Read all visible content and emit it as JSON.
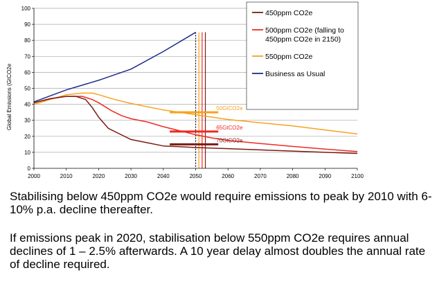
{
  "chart_data": {
    "type": "line",
    "title": "",
    "xlabel": "",
    "ylabel": "Global Emissions (GtCO2e",
    "xlim": [
      2000,
      2100
    ],
    "ylim": [
      0,
      100
    ],
    "x_ticks": [
      2000,
      2010,
      2020,
      2030,
      2040,
      2050,
      2060,
      2070,
      2080,
      2090,
      2100
    ],
    "y_ticks": [
      0,
      10,
      20,
      30,
      40,
      50,
      60,
      70,
      80,
      90,
      100
    ],
    "grid": "horizontal",
    "legend_position": "top-right",
    "series": [
      {
        "name": "450ppm CO2e",
        "color": "#7b1a12",
        "points": [
          [
            2000,
            41
          ],
          [
            2005,
            43.5
          ],
          [
            2010,
            45
          ],
          [
            2013,
            45
          ],
          [
            2016,
            43
          ],
          [
            2018,
            38
          ],
          [
            2020,
            32
          ],
          [
            2023,
            25
          ],
          [
            2027,
            21
          ],
          [
            2030,
            18
          ],
          [
            2035,
            16
          ],
          [
            2040,
            14
          ],
          [
            2045,
            13.5
          ],
          [
            2050,
            13
          ],
          [
            2060,
            12.3
          ],
          [
            2070,
            11.5
          ],
          [
            2080,
            10.8
          ],
          [
            2090,
            10
          ],
          [
            2100,
            9.3
          ]
        ]
      },
      {
        "name": "500ppm CO2e (falling to 450ppm CO2e in 2150)",
        "color": "#ee2a24",
        "points": [
          [
            2000,
            41
          ],
          [
            2005,
            43.5
          ],
          [
            2010,
            45
          ],
          [
            2015,
            45
          ],
          [
            2018,
            43
          ],
          [
            2020,
            41
          ],
          [
            2024,
            36
          ],
          [
            2027,
            33
          ],
          [
            2030,
            31
          ],
          [
            2035,
            29
          ],
          [
            2040,
            26
          ],
          [
            2045,
            23.5
          ],
          [
            2050,
            21
          ],
          [
            2055,
            19
          ],
          [
            2060,
            17.5
          ],
          [
            2070,
            15.5
          ],
          [
            2080,
            13.7
          ],
          [
            2090,
            12
          ],
          [
            2100,
            10.5
          ]
        ]
      },
      {
        "name": "550ppm CO2e",
        "color": "#f6a21f",
        "points": [
          [
            2000,
            40
          ],
          [
            2005,
            43
          ],
          [
            2010,
            46
          ],
          [
            2015,
            47
          ],
          [
            2018,
            47
          ],
          [
            2020,
            46
          ],
          [
            2025,
            43
          ],
          [
            2030,
            40.5
          ],
          [
            2040,
            36.5
          ],
          [
            2050,
            33.5
          ],
          [
            2060,
            30.5
          ],
          [
            2070,
            28.5
          ],
          [
            2080,
            26.5
          ],
          [
            2090,
            24
          ],
          [
            2100,
            21.5
          ]
        ]
      },
      {
        "name": "Business as Usual",
        "color": "#1c2a8c",
        "points": [
          [
            2000,
            41.5
          ],
          [
            2010,
            49
          ],
          [
            2020,
            55
          ],
          [
            2030,
            62
          ],
          [
            2040,
            73
          ],
          [
            2050,
            85
          ]
        ]
      }
    ],
    "annotations": [
      {
        "label": "50GtCO2e",
        "y": 35,
        "x_start": 2042,
        "x_end": 2057,
        "color": "#f6a21f"
      },
      {
        "label": "65GtCO2e",
        "y": 23,
        "x_start": 2042,
        "x_end": 2057,
        "color": "#ee2a24"
      },
      {
        "label": "70GtCO2e",
        "y": 15,
        "x_start": 2042,
        "x_end": 2057,
        "color": "#7b1a12"
      }
    ],
    "marker_lines": [
      {
        "x": 2050,
        "style": "dotted",
        "color": "#000000",
        "y_top": 85
      },
      {
        "x": 2051,
        "color": "#f6a21f",
        "y_top": 85
      },
      {
        "x": 2052,
        "color": "#ee2a24",
        "y_top": 85
      },
      {
        "x": 2053,
        "color": "#7b1a12",
        "y_top": 85
      }
    ]
  },
  "captions": {
    "paragraph1": "Stabilising below 450ppm CO2e would require emissions to peak by 2010 with 6-10% p.a. decline thereafter.",
    "paragraph2": "If emissions peak in 2020, stabilisation below 550ppm CO2e requires annual declines of 1 – 2.5% afterwards. A 10 year delay almost doubles the annual rate of decline required."
  }
}
